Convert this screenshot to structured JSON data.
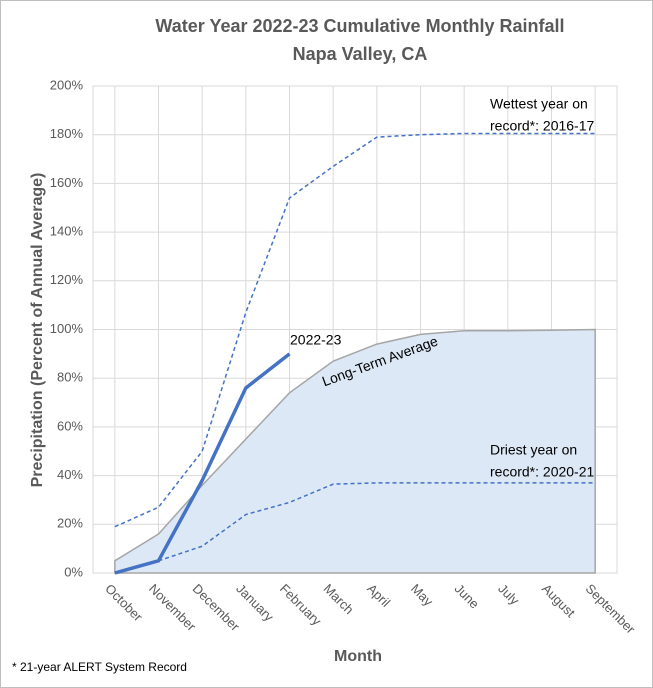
{
  "chart_data": {
    "type": "line",
    "title_lines": [
      "Water Year 2022-23 Cumulative Monthly Rainfall",
      "Napa Valley, CA"
    ],
    "x_label": "Month",
    "y_label": "Precipitation (Percent of Annual Average)",
    "footnote": "* 21-year ALERT System Record",
    "categories": [
      "October",
      "November",
      "December",
      "January",
      "February",
      "March",
      "April",
      "May",
      "June",
      "July",
      "August",
      "September"
    ],
    "ylim": [
      0,
      200
    ],
    "yticks": [
      {
        "value": 0,
        "label": "0%"
      },
      {
        "value": 20,
        "label": "20%"
      },
      {
        "value": 40,
        "label": "40%"
      },
      {
        "value": 60,
        "label": "60%"
      },
      {
        "value": 80,
        "label": "80%"
      },
      {
        "value": 100,
        "label": "100%"
      },
      {
        "value": 120,
        "label": "120%"
      },
      {
        "value": 140,
        "label": "140%"
      },
      {
        "value": 160,
        "label": "160%"
      },
      {
        "value": 180,
        "label": "180%"
      },
      {
        "value": 200,
        "label": "200%"
      }
    ],
    "grid": true,
    "series": [
      {
        "name": "Long-Term Average",
        "style": "area",
        "color": "#dce8f5",
        "line_color": "#a6a6a6",
        "values": [
          5,
          16,
          36,
          55,
          74,
          87,
          94,
          98,
          99.5,
          99.5,
          99.7,
          100
        ]
      },
      {
        "label_lines": [
          "Wettest year on",
          "record*: 2016-17"
        ],
        "style": "dashed",
        "color": "#4472c4",
        "values": [
          19,
          27,
          50,
          107,
          154,
          167,
          179,
          180,
          180.5,
          180.5,
          180.5,
          180.5
        ]
      },
      {
        "label_lines": [
          "Driest year on",
          "record*: 2020-21"
        ],
        "style": "dashed",
        "color": "#4472c4",
        "values": [
          null,
          5,
          11,
          24,
          29,
          36.5,
          37,
          37,
          37,
          37,
          37,
          37
        ]
      },
      {
        "name": "2022-23",
        "style": "solid",
        "color": "#4472c4",
        "values": [
          0,
          5,
          38,
          76,
          90,
          null,
          null,
          null,
          null,
          null,
          null,
          null
        ]
      }
    ]
  }
}
